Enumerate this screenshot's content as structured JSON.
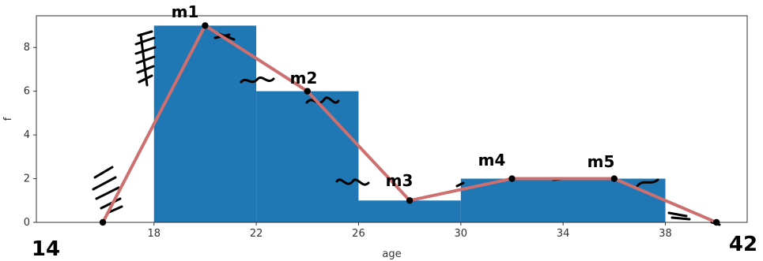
{
  "chart_data": {
    "type": "bar",
    "title": "",
    "xlabel": "age",
    "ylabel": "f",
    "xlim": [
      13.4,
      41.2
    ],
    "ylim": [
      0,
      9.45
    ],
    "xticks": [
      18,
      22,
      26,
      30,
      34,
      38
    ],
    "yticks": [
      0,
      2,
      4,
      6,
      8
    ],
    "bins": [
      {
        "start": 18,
        "end": 22,
        "value": 9
      },
      {
        "start": 22,
        "end": 26,
        "value": 6
      },
      {
        "start": 26,
        "end": 30,
        "value": 1
      },
      {
        "start": 30,
        "end": 38,
        "value": 2
      }
    ],
    "polygon": {
      "x": [
        16,
        20,
        24,
        28,
        32,
        36,
        40
      ],
      "y": [
        0,
        9,
        6,
        1,
        2,
        2,
        0
      ]
    },
    "annotations": [
      "m1",
      "m2",
      "m3",
      "m4",
      "m5",
      "14",
      "42"
    ],
    "colors": {
      "bar": "#1f77b4",
      "polygon": "#cd6f6f",
      "marker": "#000000",
      "axis": "#333333",
      "ink": "#000000"
    }
  }
}
